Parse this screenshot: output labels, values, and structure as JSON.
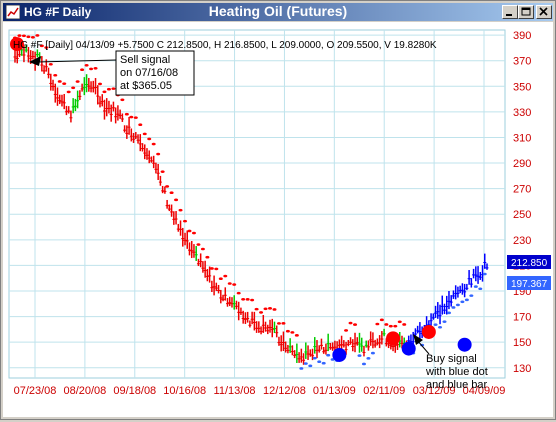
{
  "window": {
    "title_left": "HG #F Daily",
    "title_center": "Heating Oil (Futures)",
    "icon": "chart-icon",
    "controls": [
      "minimize-icon",
      "maximize-icon",
      "close-icon"
    ]
  },
  "chart_data": {
    "type": "bar",
    "info_line": "HG #F [Daily] 04/13/09  +5.7500 C 212.8500, H 216.8500, L 209.0000, O 209.5500, V 19.8280K",
    "y_ticks": [
      "390",
      "370",
      "350",
      "330",
      "310",
      "290",
      "270",
      "250",
      "230",
      "210",
      "190",
      "170",
      "150",
      "130"
    ],
    "x_ticks": [
      "07/23/08",
      "08/20/08",
      "09/18/08",
      "10/16/08",
      "11/13/08",
      "12/12/08",
      "01/13/09",
      "02/11/09",
      "03/12/09",
      "04/09/09"
    ],
    "ylim": [
      122,
      394
    ],
    "last_close": "212.850",
    "lower_band_value": "197.367",
    "series_colors": {
      "down": "#ff0000",
      "up": "#00dd00",
      "buy": "#0000ff",
      "stop_down": "#ff0000",
      "stop_up": "#3366ff"
    },
    "annotations": {
      "sell": {
        "lines": [
          "Sell signal",
          "on 07/16/08",
          "at $365.05"
        ],
        "date": "07/16/08",
        "price": 365.05
      },
      "buy": {
        "lines": [
          "Buy signal",
          "with blue dot",
          "and blue bar"
        ]
      }
    },
    "signals": [
      {
        "kind": "sell",
        "bar": 1,
        "price": 383
      },
      {
        "kind": "buy",
        "bar": 127,
        "price": 140
      },
      {
        "kind": "sell",
        "bar": 148,
        "price": 153
      },
      {
        "kind": "buy",
        "bar": 154,
        "price": 145
      },
      {
        "kind": "sell",
        "bar": 162,
        "price": 158
      },
      {
        "kind": "buy",
        "bar": 176,
        "price": 148
      }
    ]
  }
}
